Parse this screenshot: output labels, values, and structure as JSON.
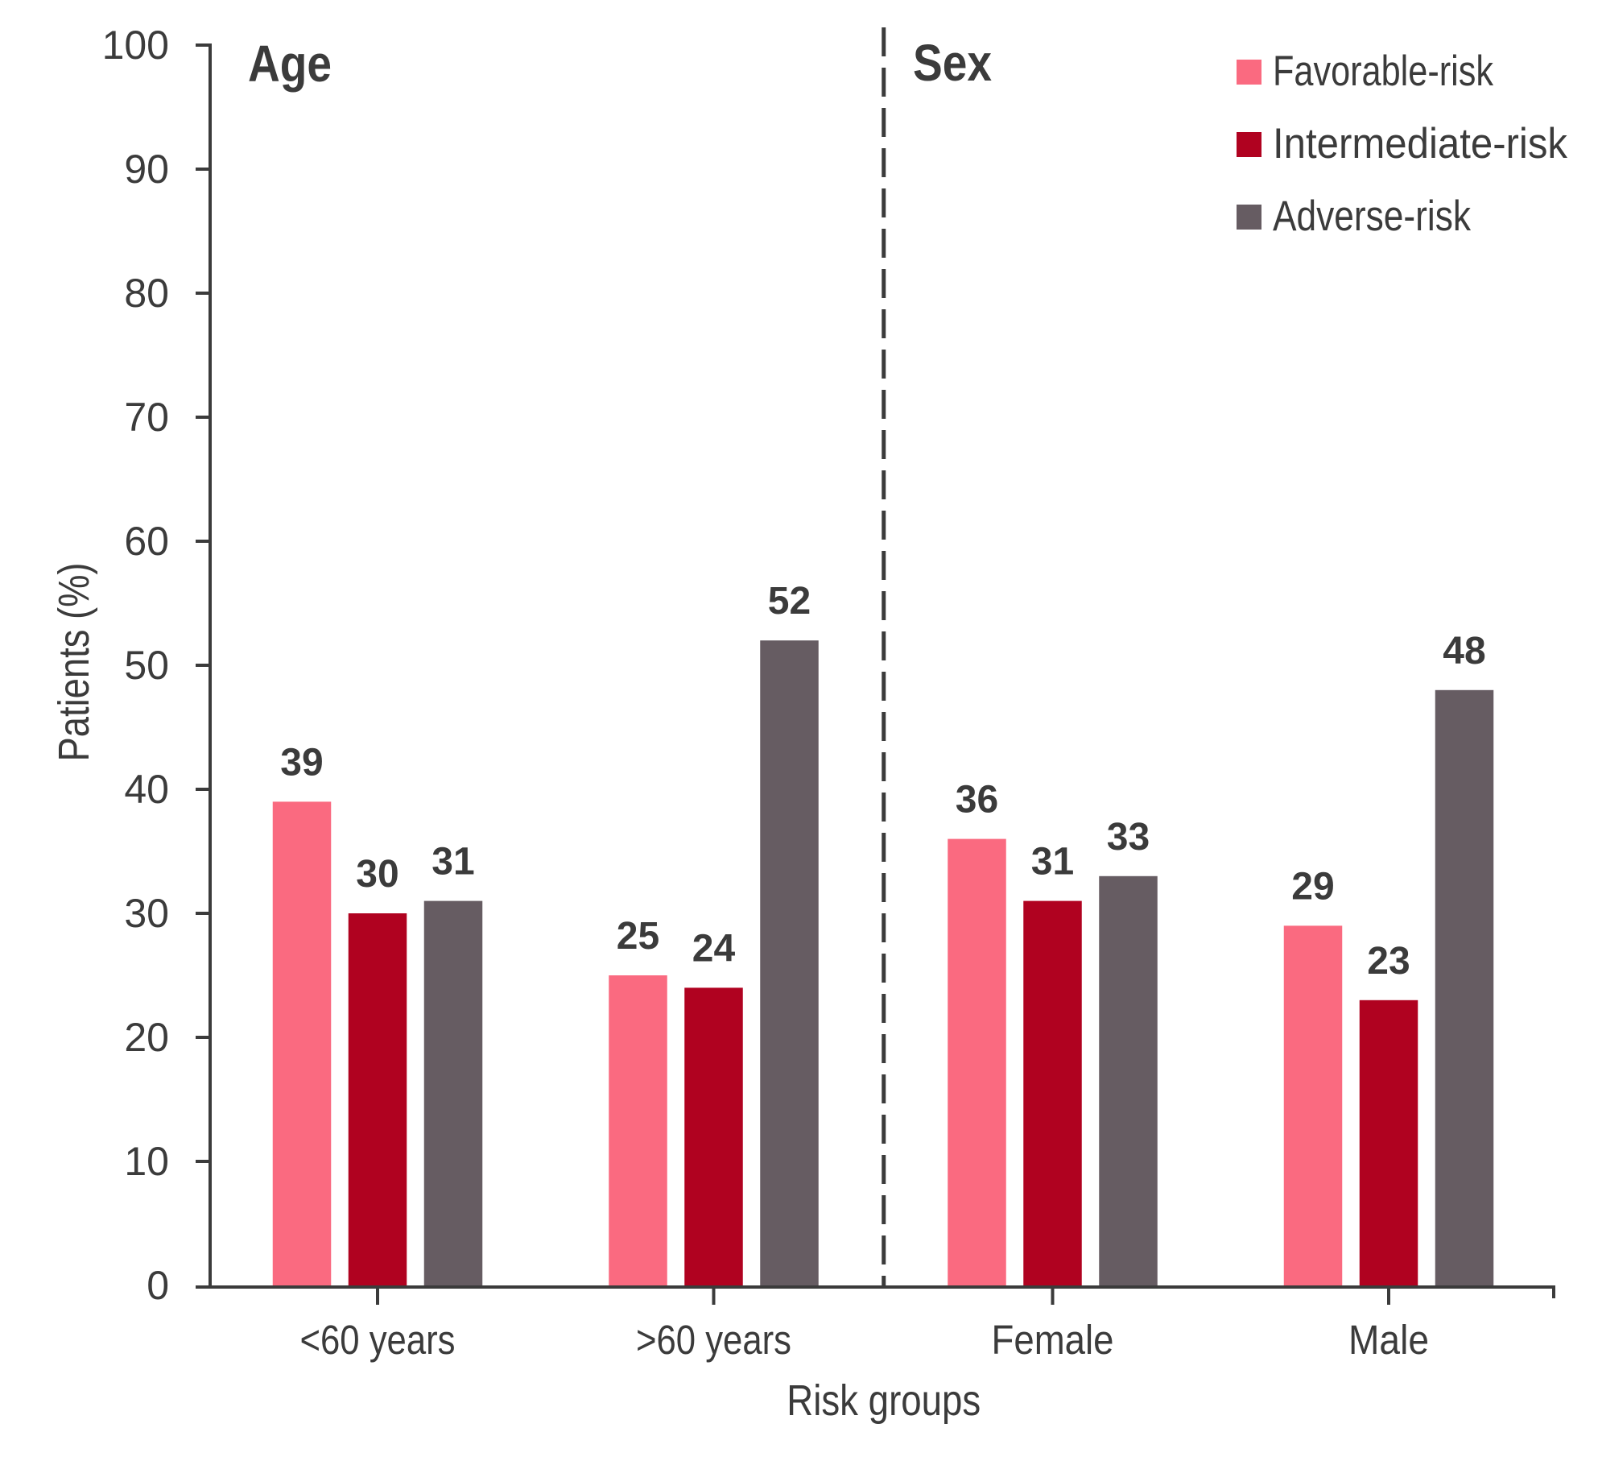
{
  "figure": {
    "background": "#FFFFFF",
    "text_color": "#3B3B3B",
    "axis_color": "#3B3B3B"
  },
  "chart_data": {
    "type": "bar",
    "title": "",
    "xlabel": "Risk groups",
    "ylabel": "Patients (%)",
    "ylim": [
      0,
      100
    ],
    "ytick_interval": 10,
    "yticks": [
      "0",
      "10",
      "20",
      "30",
      "40",
      "50",
      "60",
      "70",
      "80",
      "90",
      "100"
    ],
    "categories": [
      "<60 years",
      ">60 years",
      "Female",
      "Male"
    ],
    "panels": [
      {
        "label": "Age",
        "categories": [
          "<60 years",
          ">60 years"
        ]
      },
      {
        "label": "Sex",
        "categories": [
          "Female",
          "Male"
        ]
      }
    ],
    "separator_style": "vertical dashed line between panels",
    "grid": false,
    "legend_position": "top-right",
    "series": [
      {
        "name": "Favorable-risk",
        "color": "#FA6A80",
        "values": [
          39,
          25,
          36,
          29
        ]
      },
      {
        "name": "Intermediate-risk",
        "color": "#B00220",
        "values": [
          30,
          24,
          31,
          23
        ]
      },
      {
        "name": "Adverse-risk",
        "color": "#665C62",
        "values": [
          31,
          52,
          33,
          48
        ]
      }
    ]
  }
}
